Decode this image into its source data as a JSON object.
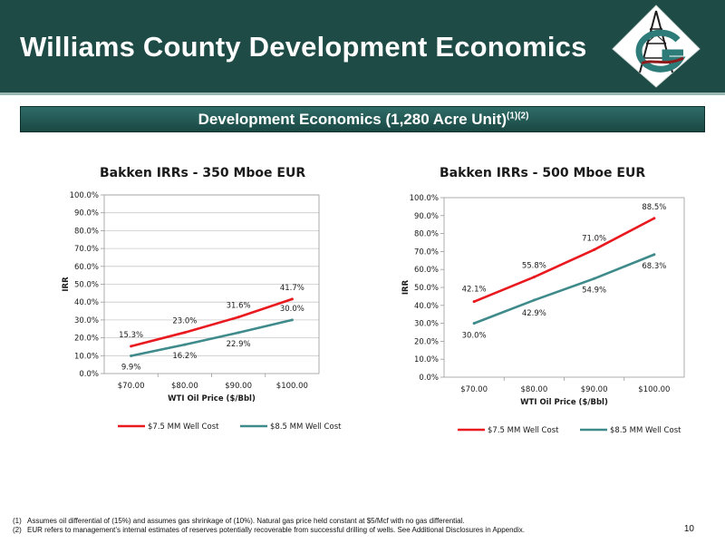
{
  "page": {
    "title": "Williams County Development Economics",
    "banner": "Development Economics (1,280 Acre Unit)",
    "banner_sup": "(1)(2)",
    "page_number": "10"
  },
  "footnotes": [
    {
      "num": "(1)",
      "text": "Assumes oil differential of (15%) and assumes gas shrinkage of (10%). Natural gas price held constant at $5/Mcf with no gas differential."
    },
    {
      "num": "(2)",
      "text": "EUR refers to management’s internal estimates of reserves potentially recoverable from successful drilling of wells.  See Additional Disclosures in Appendix."
    }
  ],
  "colors": {
    "header_bg": "#1e4b46",
    "series_red": "#e8191f",
    "series_teal": "#3f8a8a"
  },
  "chart_data": [
    {
      "type": "line",
      "title": "Bakken IRRs - 350 Mboe EUR",
      "xlabel": "WTI Oil Price ($/Bbl)",
      "ylabel": "IRR",
      "categories": [
        "$70.00",
        "$80.00",
        "$90.00",
        "$100.00"
      ],
      "yticks": [
        "0.0%",
        "10.0%",
        "20.0%",
        "30.0%",
        "40.0%",
        "50.0%",
        "60.0%",
        "70.0%",
        "80.0%",
        "90.0%",
        "100.0%"
      ],
      "ylim": [
        0,
        100
      ],
      "grid": true,
      "legend": "bottom",
      "series": [
        {
          "name": "$7.5 MM Well Cost",
          "color": "#e8191f",
          "values": [
            15.3,
            23.0,
            31.6,
            41.7
          ],
          "labels": [
            "15.3%",
            "23.0%",
            "31.6%",
            "41.7%"
          ]
        },
        {
          "name": "$8.5 MM Well Cost",
          "color": "#3f8a8a",
          "values": [
            9.9,
            16.2,
            22.9,
            30.0
          ],
          "labels": [
            "9.9%",
            "16.2%",
            "22.9%",
            "30.0%"
          ]
        }
      ]
    },
    {
      "type": "line",
      "title": "Bakken IRRs - 500 Mboe EUR",
      "xlabel": "WTI Oil Price ($/Bbl)",
      "ylabel": "IRR",
      "categories": [
        "$70.00",
        "$80.00",
        "$90.00",
        "$100.00"
      ],
      "yticks": [
        "0.0%",
        "10.0%",
        "20.0%",
        "30.0%",
        "40.0%",
        "50.0%",
        "60.0%",
        "70.0%",
        "80.0%",
        "90.0%",
        "100.0%"
      ],
      "ylim": [
        0,
        100
      ],
      "grid": false,
      "legend": "bottom",
      "series": [
        {
          "name": "$7.5 MM Well Cost",
          "color": "#e8191f",
          "values": [
            42.1,
            55.8,
            71.0,
            88.5
          ],
          "labels": [
            "42.1%",
            "55.8%",
            "71.0%",
            "88.5%"
          ]
        },
        {
          "name": "$8.5 MM Well Cost",
          "color": "#3f8a8a",
          "values": [
            30.0,
            42.9,
            54.9,
            68.3
          ],
          "labels": [
            "30.0%",
            "42.9%",
            "54.9%",
            "68.3%"
          ]
        }
      ]
    }
  ]
}
